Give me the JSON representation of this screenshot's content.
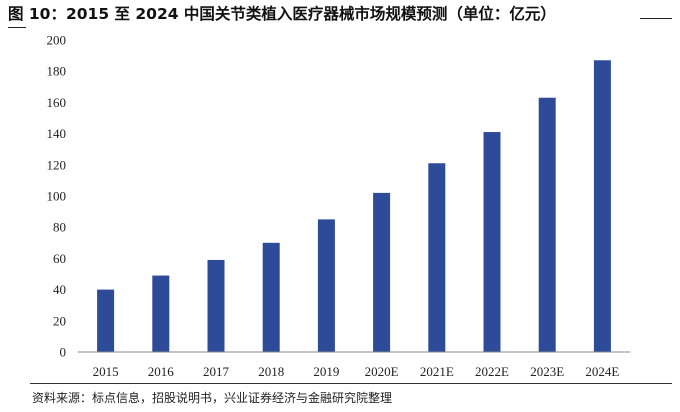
{
  "figure": {
    "title": "图 10：2015 至 2024 中国关节类植入医疗器械市场规模预测（单位：亿元）",
    "source": "资料来源：标点信息，招股说明书，兴业证券经济与金融研究院整理"
  },
  "chart_data": {
    "type": "bar",
    "title": "2015 至 2024 中国关节类植入医疗器械市场规模预测（单位：亿元）",
    "categories": [
      "2015",
      "2016",
      "2017",
      "2018",
      "2019",
      "2020E",
      "2021E",
      "2022E",
      "2023E",
      "2024E"
    ],
    "values": [
      40,
      49,
      59,
      70,
      85,
      102,
      121,
      141,
      163,
      187
    ],
    "ylim": [
      0,
      200
    ],
    "yticks": [
      0,
      20,
      40,
      60,
      80,
      100,
      120,
      140,
      160,
      180,
      200
    ],
    "grid": false,
    "legend": "none",
    "colors": {
      "bar": "#2E4B9A",
      "axis": "#888888"
    }
  }
}
